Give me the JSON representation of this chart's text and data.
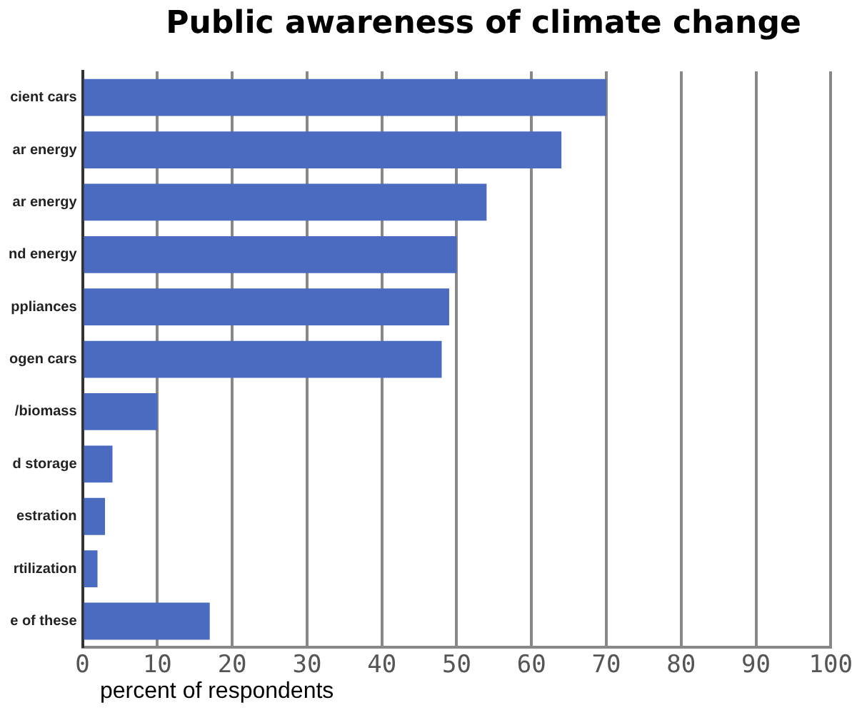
{
  "chart_data": {
    "type": "bar",
    "orientation": "horizontal",
    "title": "Public awareness of climate change",
    "xlabel": "percent of respondents",
    "categories": [
      "cient cars",
      "ar energy",
      "ar energy",
      "nd energy",
      "ppliances",
      "ogen cars",
      "/biomass",
      "d storage",
      "estration",
      "rtilization",
      "e of these"
    ],
    "values": [
      70,
      64,
      54,
      50,
      49,
      48,
      10,
      4,
      3,
      2,
      17
    ],
    "color": "#4a6bbf",
    "xlim": [
      0,
      100
    ],
    "xticks": [
      0,
      10,
      20,
      30,
      40,
      50,
      60,
      70,
      80,
      90,
      100
    ],
    "grid": "x"
  }
}
